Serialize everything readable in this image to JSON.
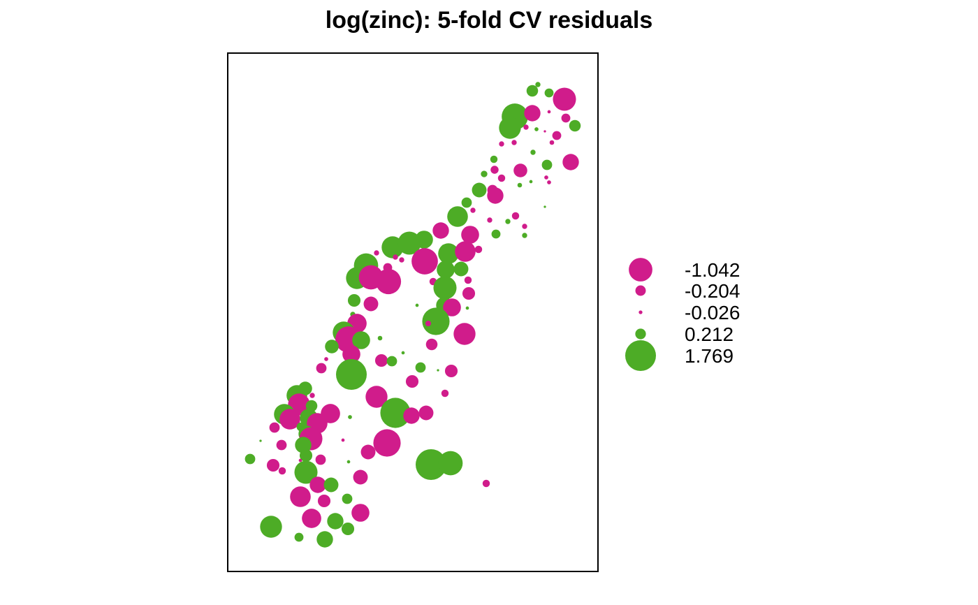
{
  "title": "log(zinc): 5-fold CV residuals",
  "colors": {
    "negative": "#D01C8B",
    "positive": "#4DAC26",
    "frame": "#000000"
  },
  "chart_data": {
    "type": "scatter",
    "subtype": "bubble",
    "title": "log(zinc): 5-fold CV residuals",
    "xlabel": "",
    "ylabel": "",
    "grid": false,
    "legend_position": "right",
    "legend": [
      {
        "label": "-1.042",
        "value": -1.042
      },
      {
        "label": "-0.204",
        "value": -0.204
      },
      {
        "label": "-0.026",
        "value": -0.026
      },
      {
        "label": "0.212",
        "value": 0.212
      },
      {
        "label": "1.769",
        "value": 1.769
      }
    ],
    "points": [
      [
        770,
        121,
        0.05
      ],
      [
        762,
        130,
        0.25
      ],
      [
        786,
        133,
        0.15
      ],
      [
        808,
        142,
        -1.0
      ],
      [
        737,
        167,
        1.3
      ],
      [
        762,
        162,
        -0.5
      ],
      [
        786,
        160,
        -0.02
      ],
      [
        810,
        169,
        -0.15
      ],
      [
        730,
        183,
        0.9
      ],
      [
        753,
        182,
        -0.05
      ],
      [
        768,
        185,
        0.03
      ],
      [
        823,
        180,
        0.25
      ],
      [
        780,
        188,
        -0.01
      ],
      [
        797,
        194,
        -0.15
      ],
      [
        718,
        206,
        -0.05
      ],
      [
        736,
        204,
        -0.05
      ],
      [
        763,
        218,
        0.05
      ],
      [
        790,
        204,
        -0.04
      ],
      [
        707,
        228,
        0.1
      ],
      [
        783,
        236,
        0.2
      ],
      [
        817,
        232,
        -0.5
      ],
      [
        708,
        243,
        -0.12
      ],
      [
        745,
        244,
        -0.35
      ],
      [
        693,
        249,
        0.08
      ],
      [
        718,
        255,
        -0.1
      ],
      [
        782,
        254,
        -0.03
      ],
      [
        760,
        260,
        0.02
      ],
      [
        686,
        272,
        0.4
      ],
      [
        705,
        272,
        -0.2
      ],
      [
        744,
        265,
        0.04
      ],
      [
        786,
        261,
        -0.03
      ],
      [
        709,
        280,
        -0.5
      ],
      [
        780,
        296,
        0.01
      ],
      [
        668,
        290,
        0.2
      ],
      [
        677,
        301,
        -0.05
      ],
      [
        738,
        309,
        -0.1
      ],
      [
        655,
        310,
        0.8
      ],
      [
        701,
        315,
        -0.05
      ],
      [
        751,
        324,
        -0.05
      ],
      [
        727,
        317,
        0.05
      ],
      [
        631,
        330,
        -0.5
      ],
      [
        673,
        336,
        -0.6
      ],
      [
        710,
        335,
        0.15
      ],
      [
        751,
        337,
        0.05
      ],
      [
        562,
        354,
        0.9
      ],
      [
        586,
        348,
        1.0
      ],
      [
        607,
        343,
        0.6
      ],
      [
        635,
        353,
        0.03
      ],
      [
        539,
        362,
        -0.05
      ],
      [
        642,
        363,
        0.8
      ],
      [
        666,
        360,
        -0.8
      ],
      [
        685,
        357,
        -0.1
      ],
      [
        566,
        368,
        -0.05
      ],
      [
        575,
        372,
        -0.05
      ],
      [
        608,
        374,
        -1.3
      ],
      [
        524,
        380,
        1.1
      ],
      [
        555,
        383,
        -0.15
      ],
      [
        511,
        398,
        0.9
      ],
      [
        638,
        386,
        0.6
      ],
      [
        660,
        385,
        0.4
      ],
      [
        531,
        397,
        -1.1
      ],
      [
        556,
        403,
        -1.2
      ],
      [
        620,
        403,
        -0.1
      ],
      [
        670,
        401,
        -0.1
      ],
      [
        637,
        412,
        1.0
      ],
      [
        671,
        420,
        -0.3
      ],
      [
        507,
        430,
        0.3
      ],
      [
        531,
        435,
        -0.4
      ],
      [
        597,
        437,
        0.02
      ],
      [
        636,
        437,
        0.5
      ],
      [
        647,
        440,
        -0.6
      ],
      [
        669,
        441,
        0.02
      ],
      [
        505,
        450,
        0.05
      ],
      [
        624,
        460,
        1.4
      ],
      [
        613,
        463,
        -0.06
      ],
      [
        511,
        463,
        -0.7
      ],
      [
        492,
        476,
        0.9
      ],
      [
        665,
        478,
        -0.9
      ],
      [
        499,
        486,
        -1.3
      ],
      [
        517,
        487,
        0.6
      ],
      [
        544,
        484,
        0.04
      ],
      [
        475,
        496,
        0.35
      ],
      [
        618,
        493,
        -0.25
      ],
      [
        503,
        507,
        -0.6
      ],
      [
        467,
        514,
        -0.03
      ],
      [
        577,
        505,
        0.02
      ],
      [
        546,
        516,
        -0.3
      ],
      [
        561,
        517,
        0.2
      ],
      [
        460,
        527,
        -0.2
      ],
      [
        602,
        526,
        0.2
      ],
      [
        627,
        530,
        0.01
      ],
      [
        503,
        536,
        1.769
      ],
      [
        646,
        531,
        -0.3
      ],
      [
        590,
        546,
        -0.3
      ],
      [
        437,
        556,
        0.35
      ],
      [
        425,
        566,
        0.8
      ],
      [
        447,
        566,
        -0.05
      ],
      [
        539,
        568,
        -0.9
      ],
      [
        637,
        563,
        -0.1
      ],
      [
        428,
        579,
        -0.9
      ],
      [
        446,
        581,
        0.25
      ],
      [
        566,
        591,
        1.7
      ],
      [
        589,
        595,
        -0.5
      ],
      [
        610,
        591,
        -0.4
      ],
      [
        407,
        593,
        0.8
      ],
      [
        415,
        600,
        -0.8
      ],
      [
        442,
        598,
        0.6
      ],
      [
        473,
        592,
        -0.7
      ],
      [
        501,
        597,
        0.03
      ],
      [
        454,
        606,
        -0.8
      ],
      [
        431,
        611,
        0.15
      ],
      [
        393,
        612,
        -0.2
      ],
      [
        439,
        621,
        0.5
      ],
      [
        445,
        628,
        -1.0
      ],
      [
        491,
        630,
        -0.02
      ],
      [
        373,
        631,
        0.01
      ],
      [
        403,
        637,
        -0.2
      ],
      [
        434,
        637,
        0.5
      ],
      [
        554,
        634,
        -1.4
      ],
      [
        527,
        647,
        -0.4
      ],
      [
        358,
        657,
        0.2
      ],
      [
        438,
        652,
        0.3
      ],
      [
        459,
        658,
        -0.2
      ],
      [
        499,
        661,
        0.02
      ],
      [
        391,
        666,
        -0.3
      ],
      [
        404,
        674,
        -0.1
      ],
      [
        430,
        659,
        -0.02
      ],
      [
        617,
        665,
        1.769
      ],
      [
        645,
        663,
        1.1
      ],
      [
        438,
        676,
        1.0
      ],
      [
        516,
        683,
        -0.4
      ],
      [
        455,
        694,
        -0.5
      ],
      [
        474,
        694,
        0.4
      ],
      [
        696,
        692,
        -0.1
      ],
      [
        430,
        711,
        -0.8
      ],
      [
        464,
        717,
        -0.3
      ],
      [
        497,
        714,
        0.2
      ],
      [
        516,
        734,
        -0.6
      ],
      [
        446,
        742,
        -0.7
      ],
      [
        480,
        746,
        0.5
      ],
      [
        498,
        757,
        0.3
      ],
      [
        388,
        754,
        0.9
      ],
      [
        428,
        769,
        0.15
      ],
      [
        465,
        772,
        0.5
      ]
    ]
  }
}
